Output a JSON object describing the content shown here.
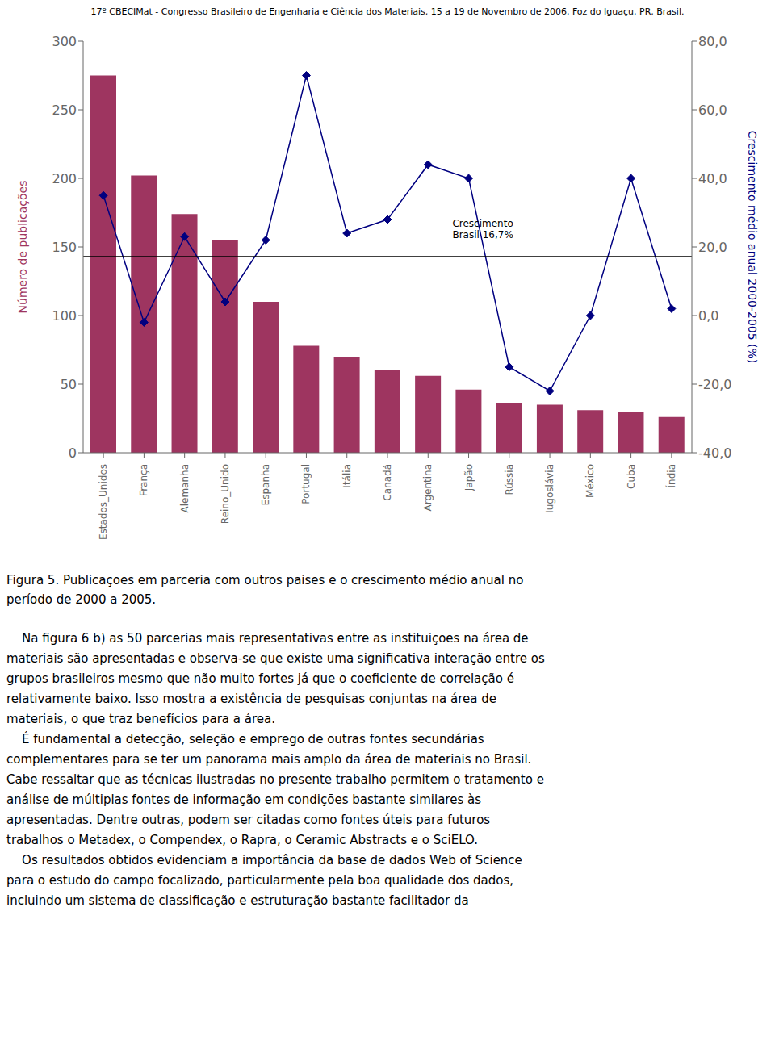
{
  "header": "17º CBECIMat - Congresso Brasileiro de Engenharia e Ciência dos Materiais, 15 a 19 de Novembro de 2006, Foz do Iguaçu, PR, Brasil.",
  "caption": [
    "Figura 5. Publicações em parceria com outros paises e o crescimento médio anual no",
    "período de 2000 a 2005."
  ],
  "paragraphs": [
    [
      "    Na figura 6 b) as 50 parcerias mais representativas entre as instituições na área de",
      "materiais são apresentadas e observa-se que existe uma significativa interação entre os",
      "grupos brasileiros mesmo que não muito fortes já que o coeficiente de correlação é",
      "relativamente baixo. Isso mostra a existência de pesquisas conjuntas na área de",
      "materiais, o que traz benefícios para a área."
    ],
    [
      "    É fundamental a detecção, seleção e emprego de outras fontes secundárias",
      "complementares para se ter um panorama mais amplo da área de materiais no Brasil.",
      "Cabe ressaltar que as técnicas ilustradas no presente trabalho permitem o tratamento e",
      "análise de múltiplas fontes de informação em condições bastante similares às",
      "apresentadas. Dentre outras, podem ser citadas como fontes úteis para futuros",
      "trabalhos o Metadex, o Compendex, o Rapra, o Ceramic Abstracts e o SciELO."
    ],
    [
      "    Os resultados obtidos evidenciam a importância da base de dados Web of Science",
      "para o estudo do campo focalizado, particularmente pela boa qualidade dos dados,",
      "incluindo um sistema de classificação e estruturação bastante facilitador da"
    ]
  ],
  "chart_data": {
    "type": "bar",
    "categories": [
      "Estados_Unidos",
      "França",
      "Alemanha",
      "Reino_Unido",
      "Espanha",
      "Portugal",
      "Itália",
      "Canadá",
      "Argentina",
      "Japão",
      "Rússia",
      "Iugoslávia",
      "México",
      "Cuba",
      "Índia"
    ],
    "series": [
      {
        "type": "bar",
        "color": "#9E3560",
        "values": [
          275,
          202,
          174,
          155,
          110,
          78,
          70,
          60,
          56,
          46,
          36,
          35,
          31,
          30,
          26
        ]
      },
      {
        "type": "line",
        "axis": "y2",
        "color": "#000080",
        "marker": "diamond",
        "values": [
          35,
          -2,
          23,
          4,
          22,
          70,
          24,
          28,
          44,
          40,
          -15,
          -22,
          0,
          40,
          2
        ]
      }
    ],
    "ylabel": "Número de publicações",
    "y2label": "Crescimento médio anual 2000-2005 (%)",
    "ylim": [
      0,
      300
    ],
    "yticks": [
      0,
      50,
      100,
      150,
      200,
      250,
      300
    ],
    "y2lim": [
      -40,
      80
    ],
    "y2ticks": [
      {
        "value": -40,
        "label": "-40,0"
      },
      {
        "value": -20,
        "label": "-20,0"
      },
      {
        "value": 0,
        "label": "0,0"
      },
      {
        "value": 20,
        "label": "20,0"
      },
      {
        "value": 40,
        "label": "40,0"
      },
      {
        "value": 60,
        "label": "60,0"
      },
      {
        "value": 80,
        "label": "80,0"
      }
    ],
    "reference_lines": [
      {
        "y": 143,
        "color": "black"
      }
    ],
    "annotations": [
      {
        "text": "Crescimento\nBrasil 16,7%",
        "x": 8.6,
        "y": 163
      }
    ],
    "grid": false
  }
}
